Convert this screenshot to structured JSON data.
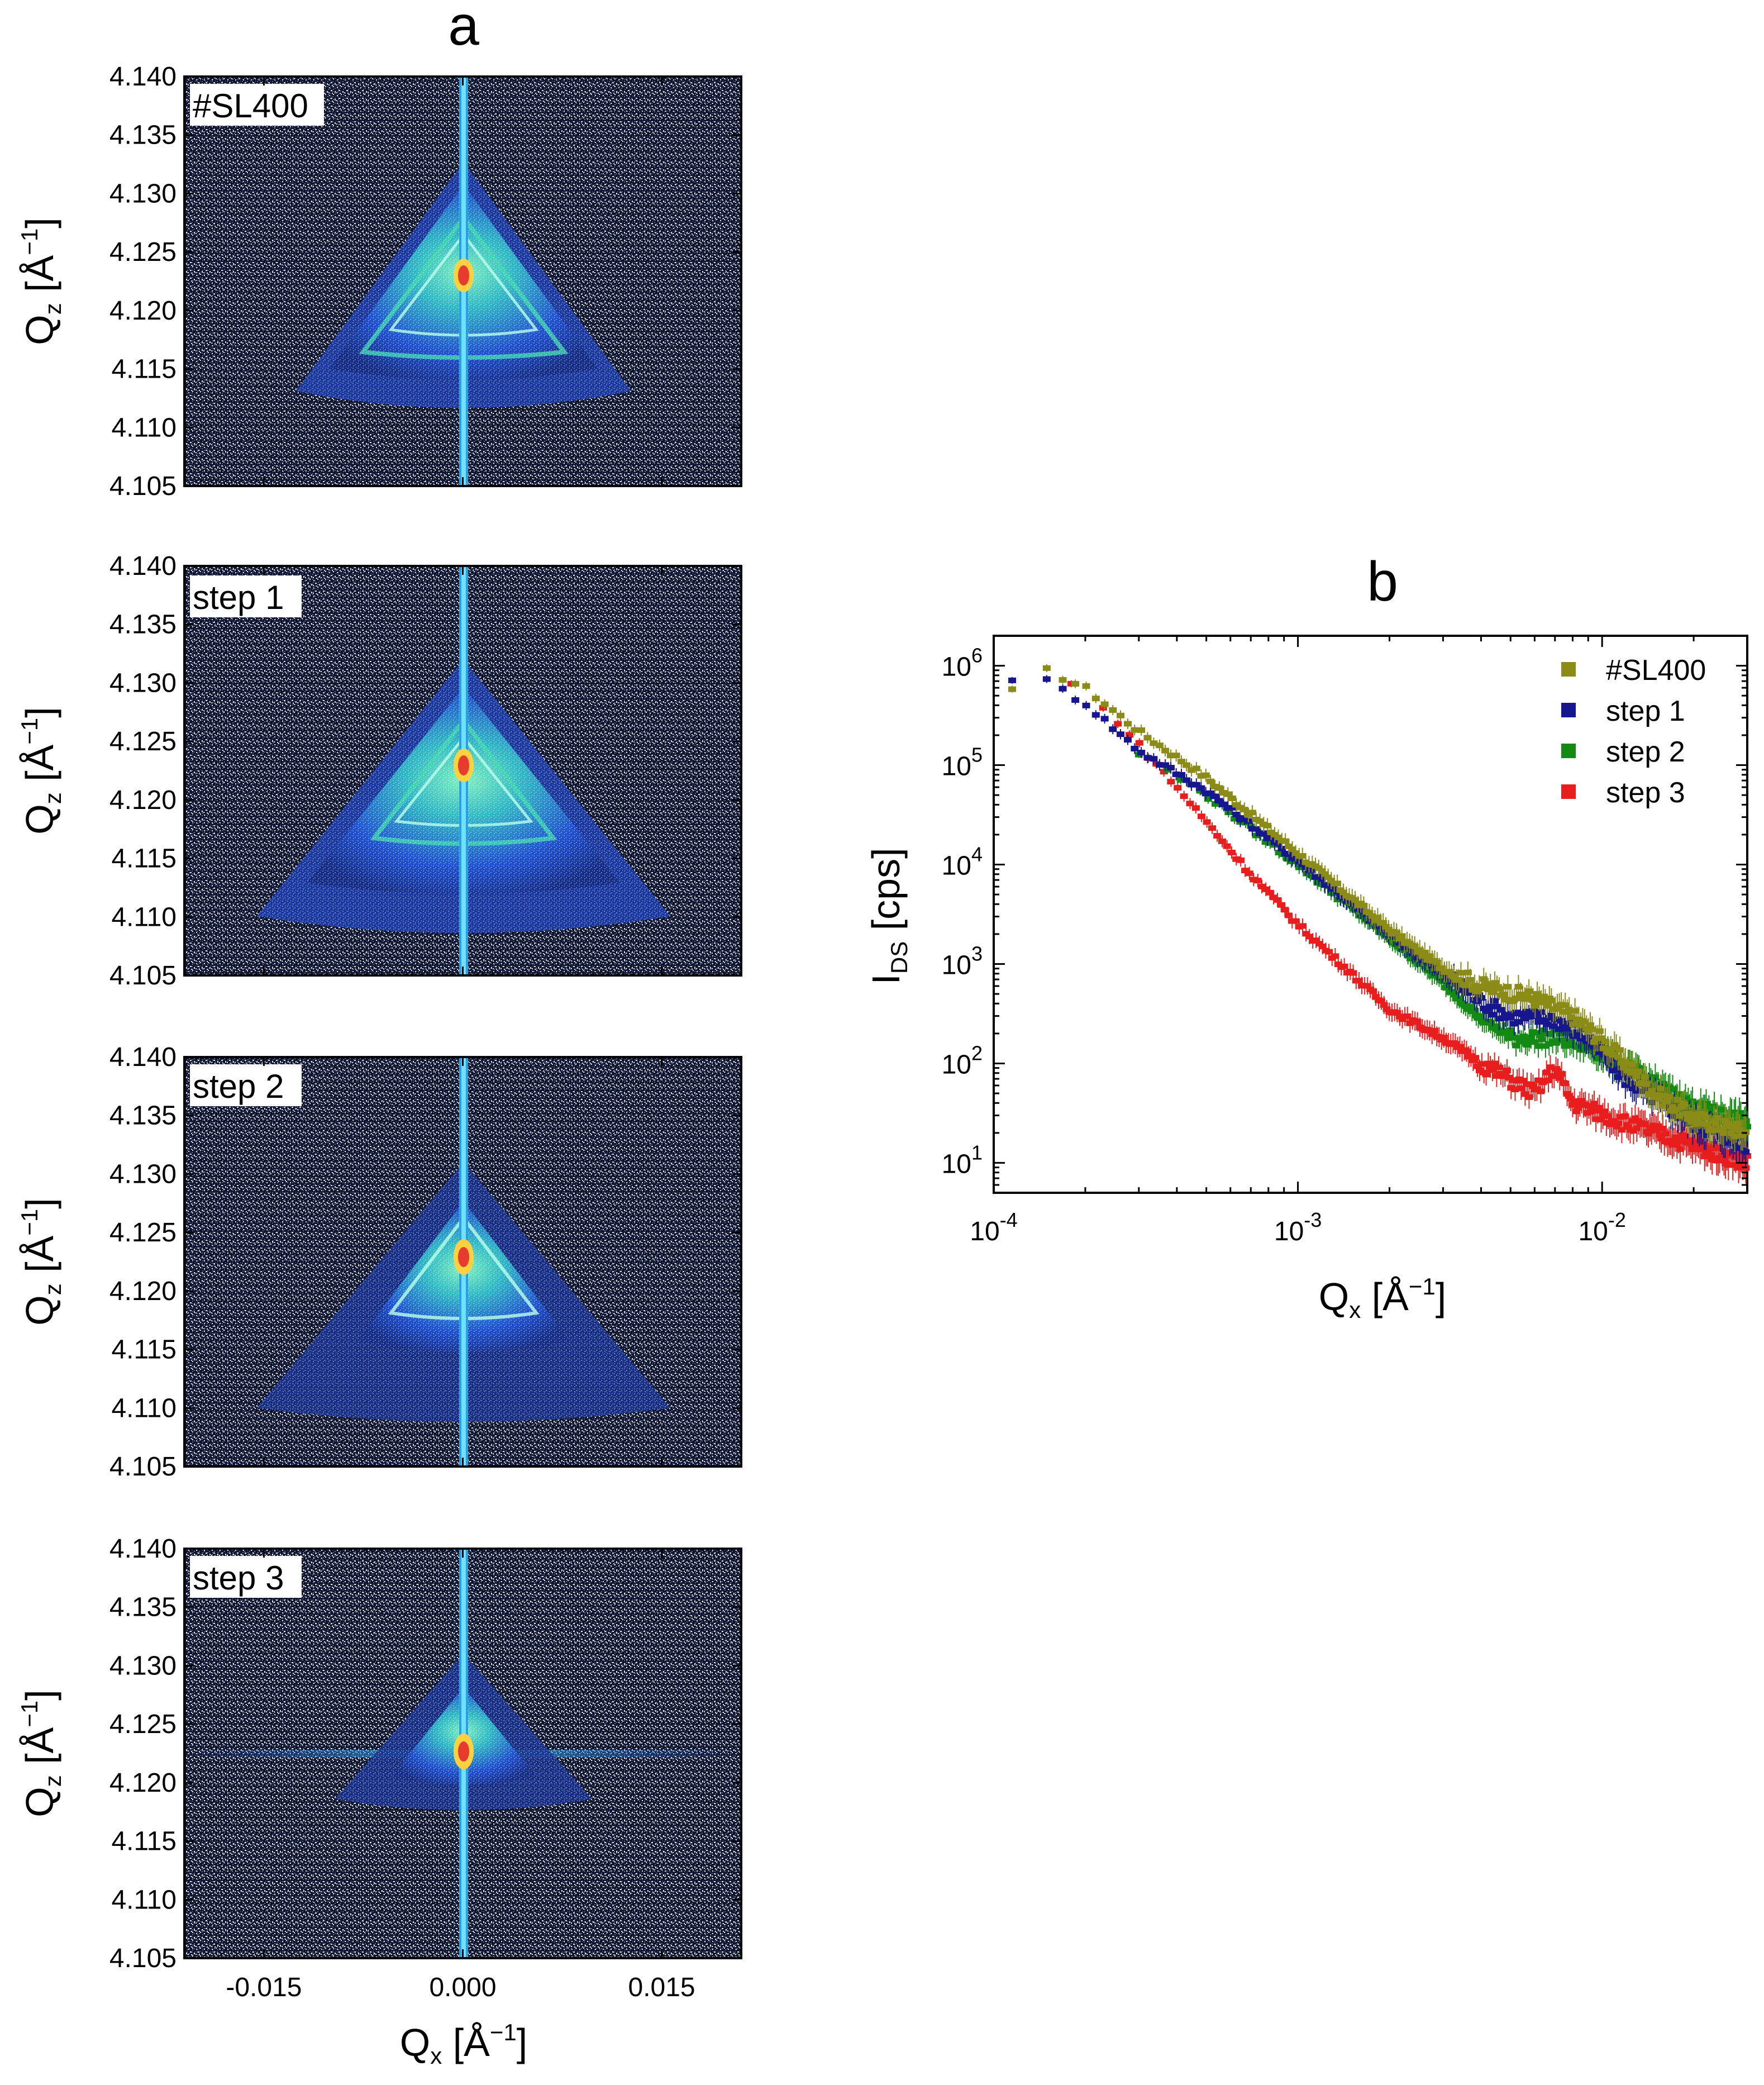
{
  "figure": {
    "panel_a_label": "a",
    "panel_b_label": "b"
  },
  "colors": {
    "sl400": "#8b8b17",
    "step1": "#16168f",
    "step2": "#138a13",
    "step3": "#e81d1d",
    "map_background": "#0d1430",
    "map_inner": "#1f4fd0",
    "map_ridge": "#38c6b8",
    "map_peak": "#e63b2e",
    "axis": "#000000"
  },
  "chart_data": [
    {
      "type": "heatmap",
      "panel": "a",
      "title": "a",
      "xlabel": "Q_x [Å^-1]",
      "ylabel": "Q_z [Å^-1]",
      "x_label_main": "Q",
      "x_label_sub": "x",
      "x_label_unit": "[Å",
      "x_label_exp": "−1",
      "x_label_close": "]",
      "y_label_main": "Q",
      "y_label_sub": "z",
      "y_label_unit": "[Å",
      "y_label_exp": "−1",
      "y_label_close": "]",
      "xlim": [
        -0.021,
        0.021
      ],
      "ylim": [
        4.105,
        4.14
      ],
      "x_ticks": [
        -0.015,
        0.0,
        0.015
      ],
      "x_tick_labels": [
        "-0.015",
        "0.000",
        "0.015"
      ],
      "y_ticks": [
        4.105,
        4.11,
        4.115,
        4.12,
        4.125,
        4.13,
        4.135,
        4.14
      ],
      "y_tick_labels": [
        "4.105",
        "4.110",
        "4.115",
        "4.120",
        "4.125",
        "4.130",
        "4.135",
        "4.140"
      ],
      "maps": [
        {
          "label": "#SL400",
          "peak_qz": 4.123,
          "spread": 1.0,
          "horizontal_streak": false
        },
        {
          "label": "step 1",
          "peak_qz": 4.123,
          "spread": 0.95,
          "horizontal_streak": false
        },
        {
          "label": "step 2",
          "peak_qz": 4.1225,
          "spread": 0.8,
          "horizontal_streak": false
        },
        {
          "label": "step 3",
          "peak_qz": 4.1225,
          "spread": 0.55,
          "horizontal_streak": true
        }
      ]
    },
    {
      "type": "scatter",
      "panel": "b",
      "title": "b",
      "xscale": "log",
      "yscale": "log",
      "xlabel": "Q_x [Å^-1]",
      "ylabel": "I_DS [cps]",
      "x_label_main": "Q",
      "x_label_sub": "x",
      "x_label_unit": "[Å",
      "x_label_exp": "−1",
      "x_label_close": "]",
      "y_label_main": "I",
      "y_label_sub": "DS",
      "y_label_unit": "[cps]",
      "xlim": [
        0.0001,
        0.03
      ],
      "ylim": [
        5,
        2000000
      ],
      "x_ticks": [
        0.0001,
        0.001,
        0.01
      ],
      "x_tick_bases": [
        "10",
        "10",
        "10"
      ],
      "x_tick_exps": [
        "-4",
        "-3",
        "-2"
      ],
      "y_ticks": [
        10,
        100,
        1000,
        10000,
        100000,
        1000000
      ],
      "y_tick_bases": [
        "10",
        "10",
        "10",
        "10",
        "10",
        "10"
      ],
      "y_tick_exps": [
        "1",
        "2",
        "3",
        "4",
        "5",
        "6"
      ],
      "legend_position": "top-right",
      "series": [
        {
          "name": "#SL400",
          "anchors_x": [
            0.000115,
            0.00015,
            0.0002,
            0.0003,
            0.0005,
            0.001,
            0.002,
            0.003,
            0.004,
            0.006,
            0.008,
            0.01,
            0.015,
            0.02,
            0.03
          ],
          "anchors_y": [
            550000,
            900000,
            600000,
            220000,
            75000,
            13000,
            2200,
            900,
            600,
            450,
            300,
            170,
            50,
            28,
            20
          ]
        },
        {
          "name": "step 1",
          "anchors_x": [
            0.000115,
            0.00015,
            0.0002,
            0.0003,
            0.0005,
            0.001,
            0.002,
            0.003,
            0.004,
            0.005,
            0.007,
            0.009,
            0.012,
            0.02,
            0.03
          ],
          "anchors_y": [
            750000,
            700000,
            420000,
            140000,
            55000,
            11000,
            2000,
            800,
            420,
            300,
            280,
            180,
            70,
            25,
            15
          ]
        },
        {
          "name": "step 2",
          "anchors_x": [
            0.0003,
            0.0005,
            0.001,
            0.002,
            0.003,
            0.004,
            0.005,
            0.007,
            0.009,
            0.012,
            0.02,
            0.03
          ],
          "anchors_y": [
            130000,
            50000,
            10000,
            1800,
            650,
            280,
            180,
            180,
            150,
            90,
            35,
            25
          ]
        },
        {
          "name": "step 3",
          "anchors_x": [
            0.00018,
            0.00025,
            0.0004,
            0.0007,
            0.001,
            0.0015,
            0.002,
            0.003,
            0.004,
            0.006,
            0.007,
            0.008,
            0.012,
            0.02,
            0.03
          ],
          "anchors_y": [
            650000,
            300000,
            60000,
            8000,
            2500,
            800,
            350,
            180,
            100,
            50,
            90,
            40,
            25,
            15,
            10
          ]
        }
      ]
    }
  ]
}
